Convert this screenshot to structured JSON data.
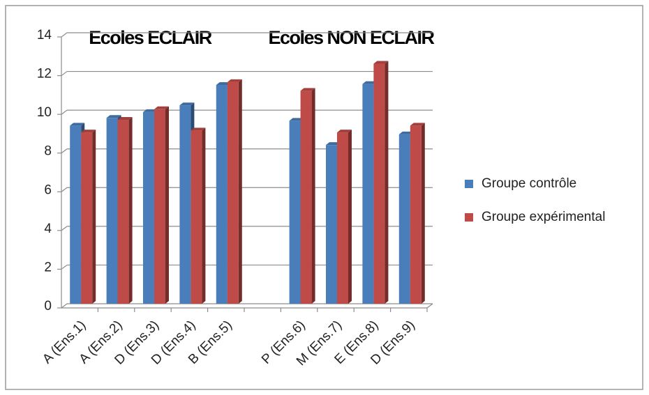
{
  "chart_data": {
    "type": "bar",
    "annotations": [
      "Ecoles ECLAIR",
      "Ecoles NON ECLAIR"
    ],
    "categories": [
      "A (Ens.1)",
      "A (Ens.2)",
      "D (Ens.3)",
      "D (Ens.4)",
      "B (Ens.5)",
      null,
      "P (Ens.6)",
      "M (Ens.7)",
      "E (Ens.8)",
      "D (Ens.9)"
    ],
    "series": [
      {
        "name": "Groupe contrôle",
        "color": "#4a7ebb",
        "values": [
          9.2,
          9.6,
          9.9,
          10.25,
          11.3,
          null,
          9.45,
          8.2,
          11.35,
          8.75
        ]
      },
      {
        "name": "Groupe expérimental",
        "color": "#be4b48",
        "values": [
          8.85,
          9.5,
          10.05,
          8.95,
          11.45,
          null,
          11.0,
          8.85,
          12.4,
          9.2
        ]
      }
    ],
    "ylim": [
      0,
      14
    ],
    "yticks": [
      0,
      2,
      4,
      6,
      8,
      10,
      12,
      14
    ],
    "grid": true,
    "legend": "right"
  }
}
